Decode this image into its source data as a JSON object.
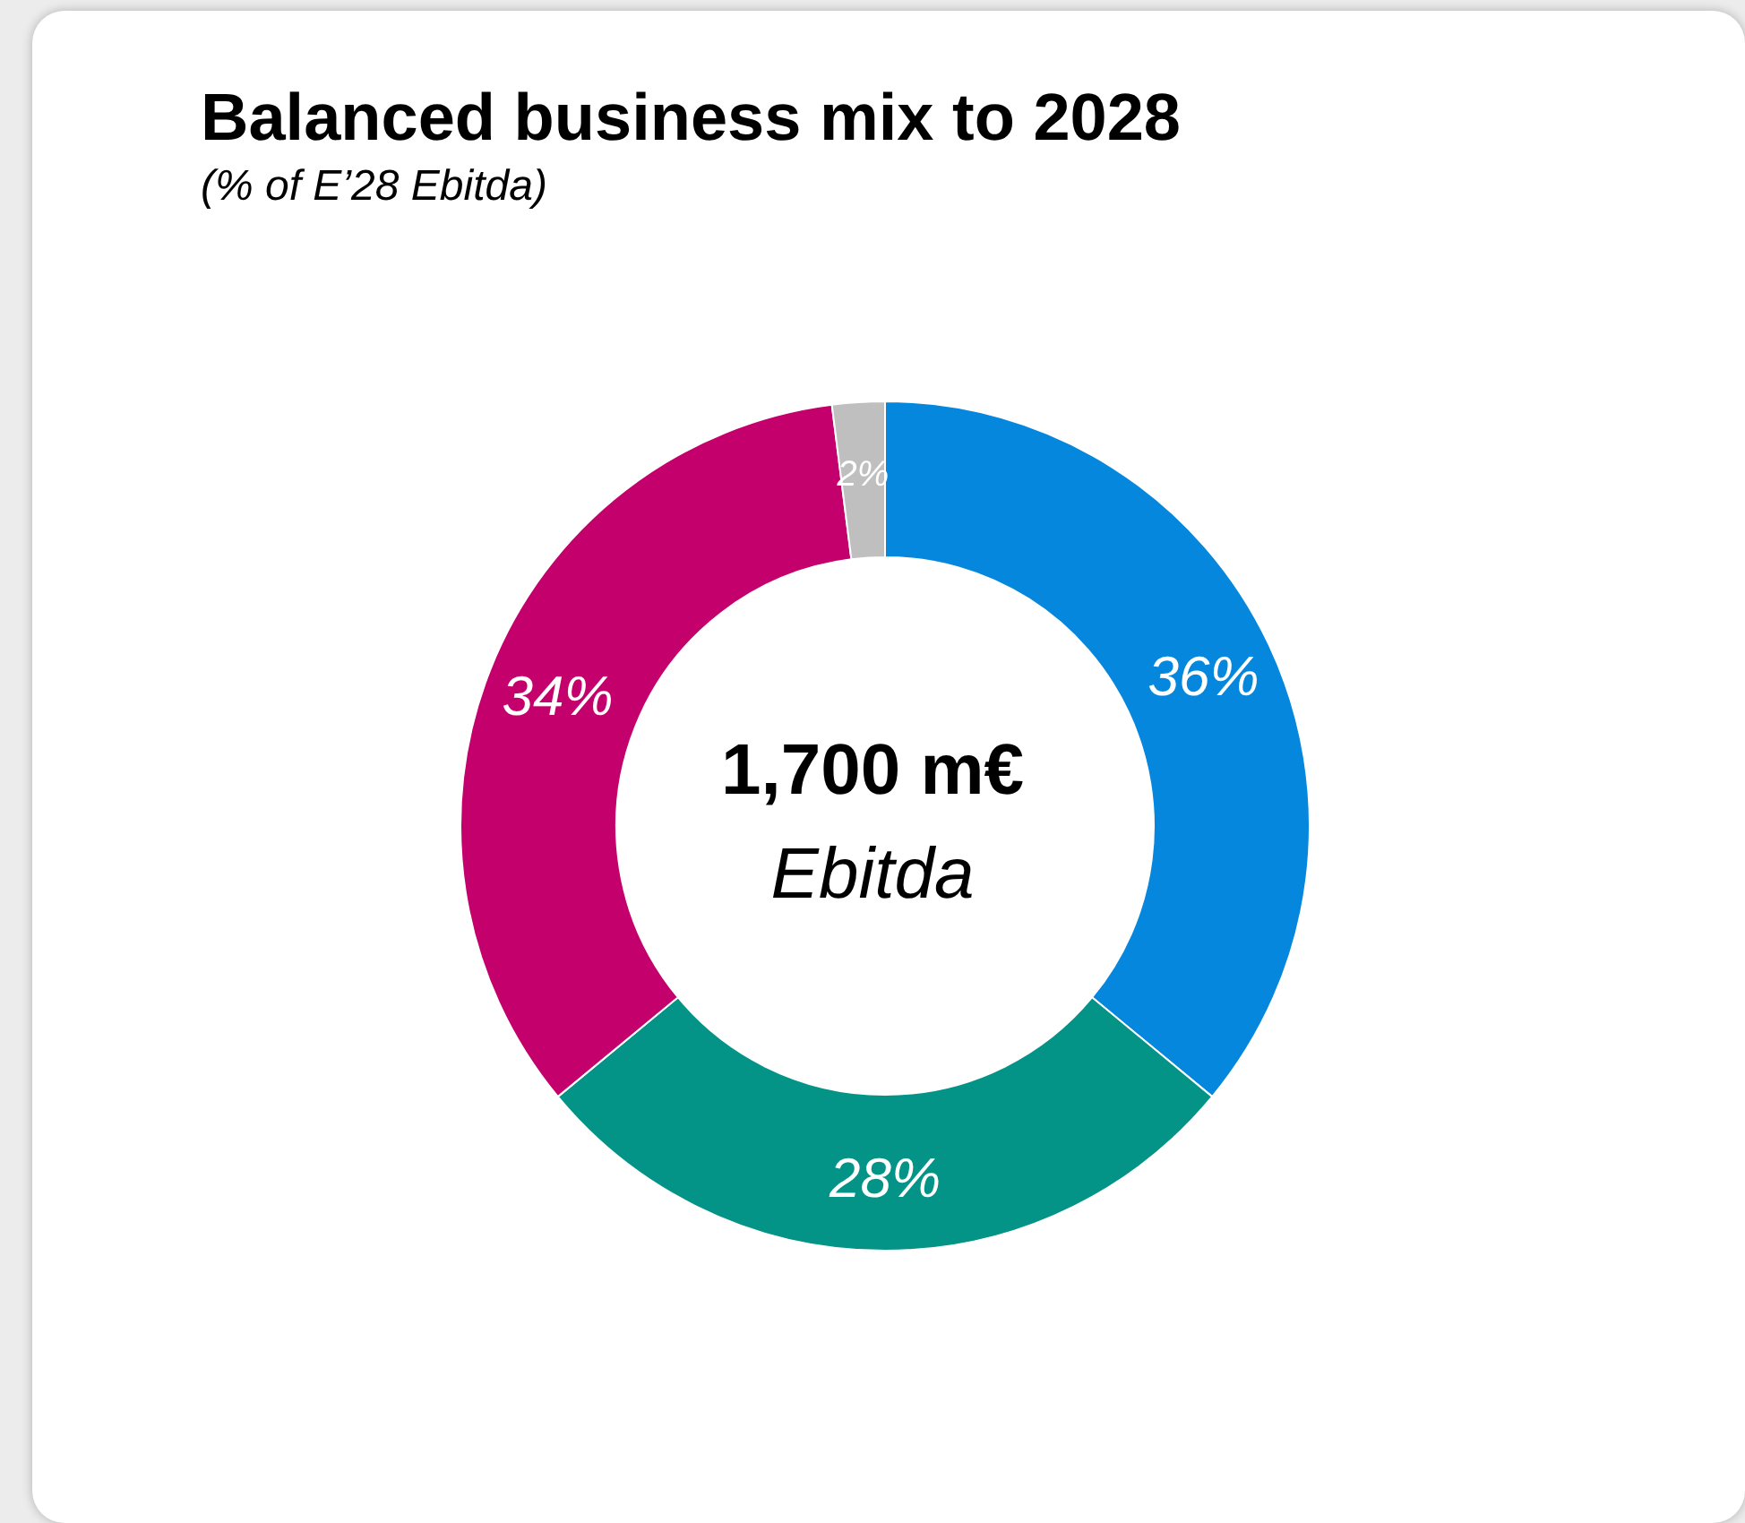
{
  "chart_data": {
    "type": "donut",
    "title": "Balanced business mix to 2028",
    "subtitle": "(% of E’28 Ebitda)",
    "categories": [
      null,
      null,
      null,
      null
    ],
    "values": [
      36,
      28,
      34,
      2
    ],
    "colors": [
      "#0587dd",
      "#039387",
      "#c4006c",
      "#bfbfbf"
    ],
    "value_labels": [
      "36%",
      "28%",
      "34%",
      "2%"
    ],
    "annotations": [
      "1,700 m€",
      "Ebitda"
    ]
  }
}
